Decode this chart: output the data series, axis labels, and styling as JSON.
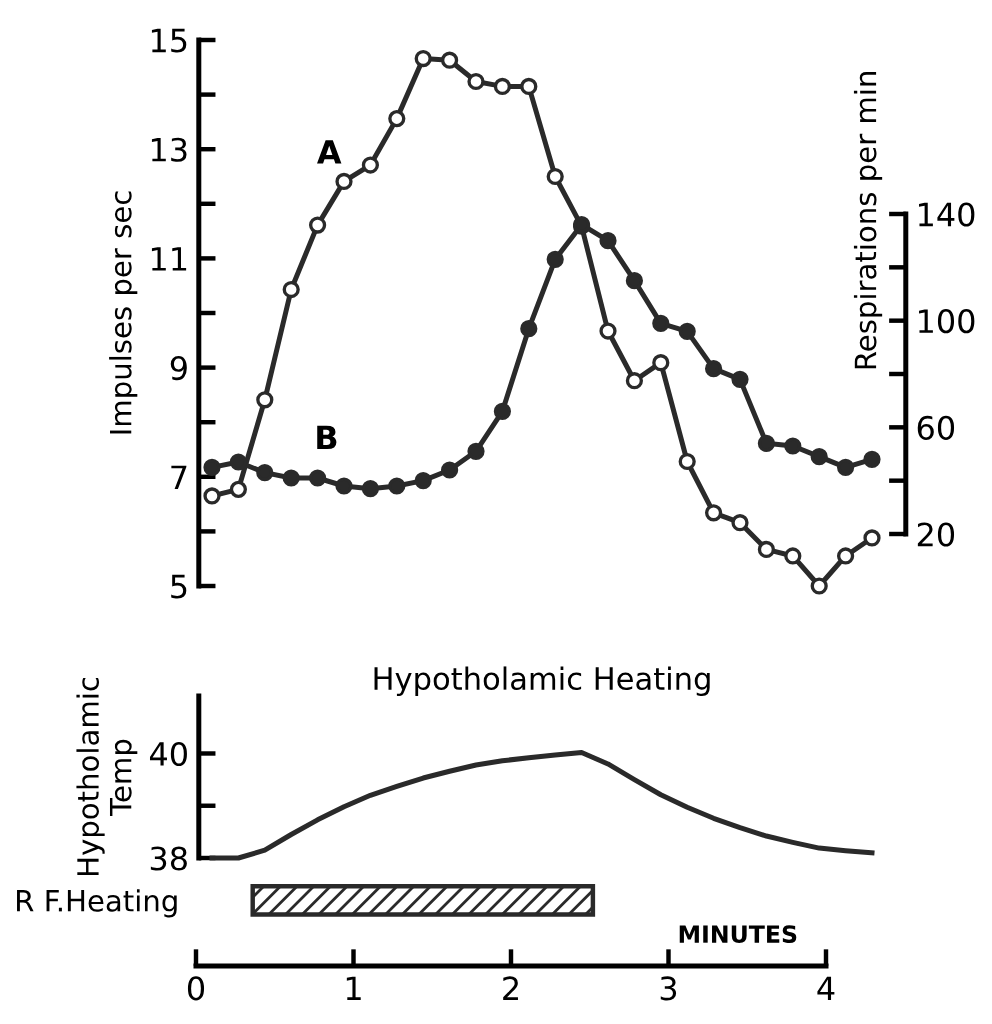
{
  "chart_data": [
    {
      "type": "line",
      "ylabel": "Impulses per sec",
      "y2label": "Respirations per min",
      "categories": [
        null,
        null,
        null,
        null,
        null,
        null,
        null,
        null,
        null,
        null,
        null,
        null,
        null,
        null,
        null,
        null,
        null,
        null,
        null,
        null,
        null,
        null,
        null,
        null,
        null,
        null
      ],
      "ylim": [
        5,
        15
      ],
      "y2lim": [
        20,
        140
      ],
      "yticks": [
        5,
        {
          "value": 6,
          "label": null
        },
        7,
        {
          "value": 8,
          "label": null
        },
        9,
        {
          "value": 10,
          "label": null
        },
        11,
        {
          "value": 12,
          "label": null
        },
        13,
        {
          "value": 14,
          "label": null
        },
        15
      ],
      "y2ticks": [
        20,
        {
          "value": 40,
          "label": null
        },
        60,
        {
          "value": 80,
          "label": null
        },
        100,
        {
          "value": 120,
          "label": null
        },
        140
      ],
      "tick_labels": "y",
      "grid": false,
      "legend": false,
      "marker": "circle",
      "line_style": "solid",
      "annotations": [
        "A",
        "B"
      ],
      "series": [
        {
          "color": "#2a2a2a",
          "colors": [
            "#ffffff",
            "#ffffff",
            "#ffffff",
            "#ffffff",
            "#ffffff",
            "#ffffff",
            "#ffffff",
            "#ffffff",
            "#ffffff",
            "#ffffff",
            "#ffffff",
            "#ffffff",
            "#ffffff",
            "#ffffff",
            "#ffffff",
            "#ffffff",
            "#ffffff",
            "#ffffff",
            "#ffffff",
            "#ffffff",
            "#ffffff",
            "#ffffff",
            "#ffffff",
            "#ffffff",
            "#ffffff",
            "#ffffff"
          ],
          "values": [
            6.65,
            6.77,
            8.41,
            10.43,
            11.61,
            12.41,
            12.71,
            13.56,
            14.66,
            14.63,
            14.24,
            14.15,
            14.15,
            12.5,
            11.59,
            9.67,
            8.76,
            9.09,
            7.28,
            6.34,
            6.16,
            5.67,
            5.55,
            5.0,
            5.55,
            5.88
          ]
        },
        {
          "color": "#2a2a2a",
          "axis": "y2",
          "values": [
            45,
            47,
            43,
            41,
            41,
            38,
            37,
            38,
            40,
            44,
            51,
            66,
            97,
            123,
            136,
            130,
            115,
            99,
            96,
            82,
            78,
            54,
            53,
            49,
            45,
            48
          ]
        }
      ]
    },
    {
      "type": "line",
      "title": "Hypotholamic Heating",
      "ylabel": "Hypotholamic\nTemp",
      "categories": [
        null,
        null,
        null,
        null,
        null,
        null,
        null,
        null,
        null,
        null,
        null,
        null,
        null,
        null,
        null,
        null,
        null,
        null,
        null,
        null,
        null,
        null,
        null,
        null,
        null,
        null
      ],
      "ylim": [
        38,
        41.1
      ],
      "yticks": [
        38,
        {
          "value": 39,
          "label": null
        },
        40
      ],
      "tick_labels": "y",
      "grid": false,
      "legend": false,
      "marker": "none",
      "line_style": "solid",
      "series": [
        {
          "color": "#2a2a2a",
          "values": [
            38.0,
            38.0,
            38.15,
            38.45,
            38.73,
            38.98,
            39.2,
            39.37,
            39.53,
            39.66,
            39.78,
            39.86,
            39.92,
            39.97,
            40.02,
            39.8,
            39.5,
            39.21,
            38.97,
            38.76,
            38.58,
            38.42,
            38.3,
            38.19,
            38.14,
            38.1
          ]
        }
      ]
    },
    {
      "type": "bar",
      "orientation": "horizontal",
      "xlabel": "MINUTES",
      "categories": [
        "R F.Heating"
      ],
      "base": [
        0.36
      ],
      "values": [
        2.16
      ],
      "color": "#2a2a2a",
      "xlim": [
        0,
        4
      ],
      "xticks": [
        0,
        1,
        2,
        3,
        4
      ],
      "grid": false,
      "legend": false
    }
  ]
}
